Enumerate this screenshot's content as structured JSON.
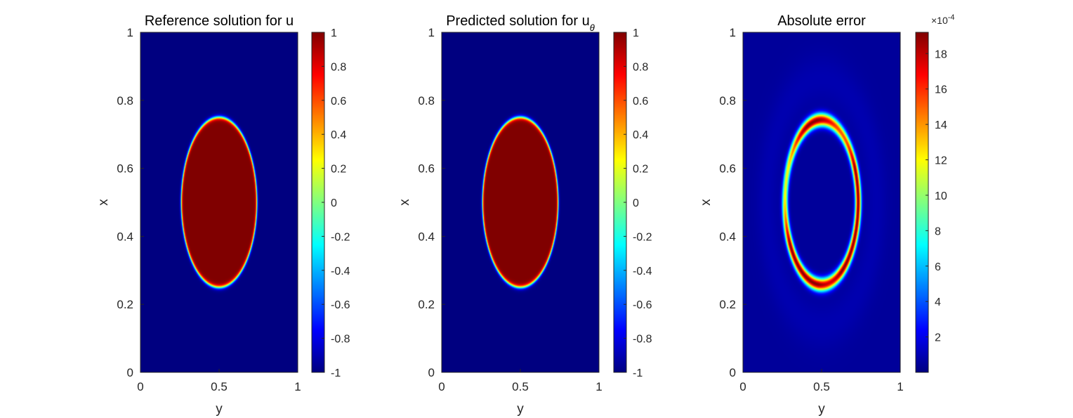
{
  "chart_data": [
    {
      "type": "heatmap",
      "title": "Reference solution for u",
      "title_subscript": "",
      "xlabel": "y",
      "ylabel": "x",
      "xlim": [
        0,
        1
      ],
      "ylim": [
        0,
        1
      ],
      "xticks": [
        0,
        0.5,
        1
      ],
      "xtick_labels": [
        "0",
        "0.5",
        "1"
      ],
      "yticks": [
        0,
        0.2,
        0.4,
        0.6,
        0.8,
        1
      ],
      "ytick_labels": [
        "0",
        "0.2",
        "0.4",
        "0.6",
        "0.8",
        "1"
      ],
      "colormap": "jet",
      "colorbar": {
        "range": [
          -1,
          1
        ],
        "ticks": [
          -1,
          -0.8,
          -0.6,
          -0.4,
          -0.2,
          0,
          0.2,
          0.4,
          0.6,
          0.8,
          1
        ],
        "tick_labels": [
          "-1",
          "-0.8",
          "-0.6",
          "-0.4",
          "-0.2",
          "0",
          "0.2",
          "0.4",
          "0.6",
          "0.8",
          "1"
        ],
        "exponent_label": ""
      },
      "field": {
        "shape": "ellipse",
        "center": {
          "y": 0.5,
          "x": 0.5
        },
        "semi_axis_y": 0.24,
        "semi_axis_x": 0.25,
        "inside_value": 1,
        "outside_value": -1
      }
    },
    {
      "type": "heatmap",
      "title": "Predicted solution for u",
      "title_subscript": "θ",
      "xlabel": "y",
      "ylabel": "x",
      "xlim": [
        0,
        1
      ],
      "ylim": [
        0,
        1
      ],
      "xticks": [
        0,
        0.5,
        1
      ],
      "xtick_labels": [
        "0",
        "0.5",
        "1"
      ],
      "yticks": [
        0,
        0.2,
        0.4,
        0.6,
        0.8,
        1
      ],
      "ytick_labels": [
        "0",
        "0.2",
        "0.4",
        "0.6",
        "0.8",
        "1"
      ],
      "colormap": "jet",
      "colorbar": {
        "range": [
          -1,
          1
        ],
        "ticks": [
          -1,
          -0.8,
          -0.6,
          -0.4,
          -0.2,
          0,
          0.2,
          0.4,
          0.6,
          0.8,
          1
        ],
        "tick_labels": [
          "-1",
          "-0.8",
          "-0.6",
          "-0.4",
          "-0.2",
          "0",
          "0.2",
          "0.4",
          "0.6",
          "0.8",
          "1"
        ],
        "exponent_label": ""
      },
      "field": {
        "shape": "ellipse",
        "center": {
          "y": 0.5,
          "x": 0.5
        },
        "semi_axis_y": 0.24,
        "semi_axis_x": 0.25,
        "inside_value": 1,
        "outside_value": -1
      }
    },
    {
      "type": "heatmap",
      "title": "Absolute error",
      "title_subscript": "",
      "xlabel": "y",
      "ylabel": "x",
      "xlim": [
        0,
        1
      ],
      "ylim": [
        0,
        1
      ],
      "xticks": [
        0,
        0.5,
        1
      ],
      "xtick_labels": [
        "0",
        "0.5",
        "1"
      ],
      "yticks": [
        0,
        0.2,
        0.4,
        0.6,
        0.8,
        1
      ],
      "ytick_labels": [
        "0",
        "0.2",
        "0.4",
        "0.6",
        "0.8",
        "1"
      ],
      "colormap": "jet",
      "colorbar": {
        "range": [
          0,
          19.2
        ],
        "ticks": [
          2,
          4,
          6,
          8,
          10,
          12,
          14,
          16,
          18
        ],
        "tick_labels": [
          "2",
          "4",
          "6",
          "8",
          "10",
          "12",
          "14",
          "16",
          "18"
        ],
        "exponent_label": "×10^-4"
      },
      "field": {
        "shape": "ring",
        "center": {
          "y": 0.5,
          "x": 0.5
        },
        "semi_axis_y": 0.24,
        "semi_axis_x": 0.25,
        "background_value": 0.5,
        "peak_value": 19
      }
    }
  ]
}
